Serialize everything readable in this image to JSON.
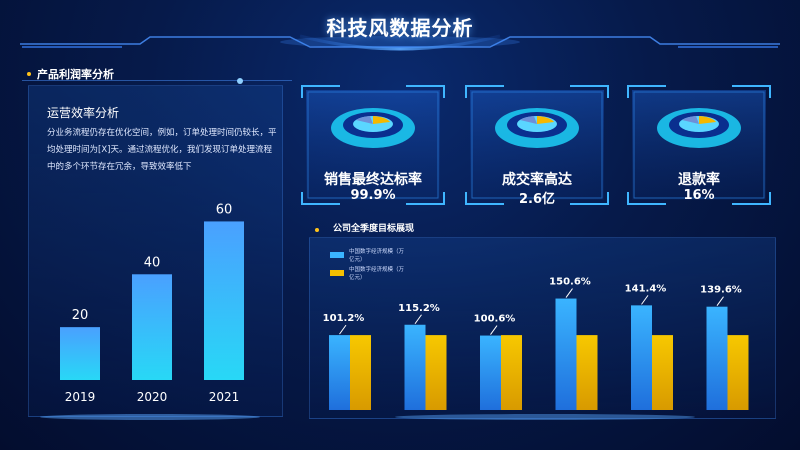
{
  "title": "科技风数据分析",
  "left_section": {
    "title": "产品利润率分析",
    "heading": "运营效率分析",
    "text": "分业务流程仍存在优化空间，例如，订单处理时间仍较长，平均处理时间为[X]天。通过流程优化，我们发现订单处理流程中的多个环节存在冗余，导致效率低下"
  },
  "cards": [
    {
      "label": "销售最终达标率",
      "value": "99.9%"
    },
    {
      "label": "成交率高达",
      "value": "2.6亿"
    },
    {
      "label": "退款率",
      "value": "16%"
    }
  ],
  "right_section": {
    "title": "公司全季度目标展现"
  },
  "colors": {
    "bar_blue": "#3ab4ff",
    "bar_yellow": "#f5c000",
    "accent": "#ffc21a"
  },
  "chart_data": [
    {
      "type": "bar",
      "categories": [
        "2019",
        "2020",
        "2021"
      ],
      "values": [
        20,
        40,
        60
      ],
      "ylim": [
        0,
        70
      ]
    },
    {
      "type": "bar",
      "legend": [
        "中国数字经济规模（万亿元）",
        "中国数字经济规模（万亿元）"
      ],
      "legend_position": "top-left",
      "labels": [
        "101.2%",
        "115.2%",
        "100.6%",
        "150.6%",
        "141.4%",
        "139.6%"
      ],
      "series": [
        {
          "values": [
            101.2,
            115.2,
            100.6,
            150.6,
            141.4,
            139.6
          ]
        },
        {
          "values": [
            101.2,
            101.2,
            101.2,
            101.2,
            101.2,
            101.2
          ]
        }
      ],
      "ylim": [
        0,
        200
      ]
    }
  ]
}
